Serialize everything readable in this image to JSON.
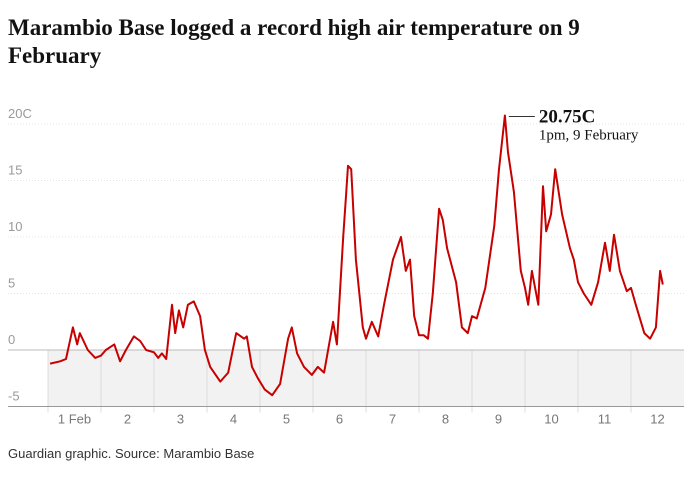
{
  "chart_data": {
    "type": "line",
    "title": "Marambio Base logged a record high air temperature on 9 February",
    "source": "Guardian graphic. Source: Marambio Base",
    "annotation": {
      "x": 9.62,
      "y": 20.75,
      "label": "20.75C",
      "sublabel": "1pm, 9 February"
    },
    "x": [
      1.04,
      1.23,
      1.34,
      1.47,
      1.55,
      1.6,
      1.75,
      1.89,
      2.0,
      2.09,
      2.25,
      2.36,
      2.47,
      2.62,
      2.74,
      2.85,
      3.0,
      3.08,
      3.15,
      3.23,
      3.34,
      3.4,
      3.47,
      3.55,
      3.64,
      3.75,
      3.87,
      3.96,
      4.06,
      4.25,
      4.4,
      4.55,
      4.7,
      4.75,
      4.85,
      4.96,
      5.09,
      5.23,
      5.38,
      5.53,
      5.6,
      5.7,
      5.83,
      5.98,
      6.09,
      6.21,
      6.38,
      6.45,
      6.57,
      6.62,
      6.66,
      6.72,
      6.81,
      6.94,
      7.0,
      7.11,
      7.23,
      7.34,
      7.51,
      7.66,
      7.75,
      7.83,
      7.91,
      8.0,
      8.09,
      8.17,
      8.26,
      8.38,
      8.45,
      8.53,
      8.7,
      8.81,
      8.92,
      9.0,
      9.09,
      9.25,
      9.42,
      9.51,
      9.62,
      9.68,
      9.79,
      9.92,
      10.0,
      10.06,
      10.13,
      10.25,
      10.34,
      10.4,
      10.49,
      10.57,
      10.7,
      10.85,
      10.92,
      11.0,
      11.11,
      11.25,
      11.38,
      11.51,
      11.6,
      11.68,
      11.79,
      11.92,
      12.0,
      12.09,
      12.25,
      12.36,
      12.47,
      12.55,
      12.6
    ],
    "series": [
      {
        "name": "Air temperature",
        "color": "#c70000",
        "values": [
          -1.2,
          -1,
          -0.8,
          2,
          0.5,
          1.5,
          0,
          -0.7,
          -0.5,
          0,
          0.5,
          -1,
          0,
          1.2,
          0.8,
          0,
          -0.2,
          -0.7,
          -0.3,
          -0.8,
          4,
          1.5,
          3.5,
          2,
          4,
          4.3,
          3,
          0,
          -1.5,
          -2.8,
          -2,
          1.5,
          1,
          1.2,
          -1.5,
          -2.5,
          -3.5,
          -4,
          -3,
          1,
          2,
          -0.3,
          -1.5,
          -2.2,
          -1.5,
          -2,
          2.5,
          0.5,
          10,
          13.5,
          16.3,
          16,
          8,
          2,
          1,
          2.5,
          1.2,
          4,
          8,
          10,
          7,
          8,
          3,
          1.3,
          1.3,
          1,
          5,
          12.5,
          11.5,
          9,
          6,
          2,
          1.5,
          3,
          2.8,
          5.5,
          11,
          16,
          20.75,
          17.5,
          14,
          7,
          5.5,
          4,
          7,
          4,
          14.5,
          10.5,
          12,
          16,
          12,
          9,
          8,
          6,
          5,
          4,
          6,
          9.5,
          7,
          10.2,
          7,
          5.2,
          5.5,
          4,
          1.5,
          1,
          2,
          7,
          5.8
        ]
      }
    ],
    "xlim": [
      1,
      13
    ],
    "xticks": [
      {
        "value": 1,
        "label": "1 Feb"
      },
      2,
      3,
      4,
      5,
      6,
      7,
      8,
      9,
      10,
      11,
      12
    ],
    "ylim": [
      -5,
      20
    ],
    "yticks": [
      -5,
      0,
      5,
      10,
      15,
      {
        "value": 20,
        "label": "20C"
      }
    ],
    "grid": true
  }
}
